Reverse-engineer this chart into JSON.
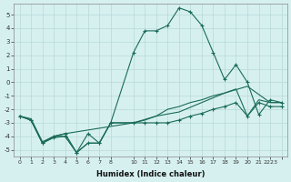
{
  "xlabel": "Humidex (Indice chaleur)",
  "ylabel": "",
  "background_color": "#d6f0f0",
  "grid_color": "#b8d8d8",
  "line_color": "#1a6b5a",
  "xlim": [
    -0.5,
    23.5
  ],
  "ylim": [
    -5.5,
    5.8
  ],
  "yticks": [
    -5,
    -4,
    -3,
    -2,
    -1,
    0,
    1,
    2,
    3,
    4,
    5
  ],
  "xtick_positions": [
    0,
    1,
    2,
    3,
    4,
    5,
    6,
    7,
    8,
    10,
    11,
    12,
    13,
    14,
    15,
    16,
    17,
    18,
    19,
    20,
    21,
    22,
    23
  ],
  "xtick_labels": [
    "0",
    "1",
    "2",
    "3",
    "4",
    "5",
    "6",
    "7",
    "8",
    "10",
    "11",
    "12",
    "13",
    "14",
    "15",
    "16",
    "17",
    "18",
    "19",
    "20",
    "21",
    "2223",
    ""
  ],
  "line1_x": [
    0,
    1,
    2,
    3,
    4,
    5,
    6,
    7,
    8,
    10,
    11,
    12,
    13,
    14,
    15,
    16,
    17,
    18,
    19,
    20,
    21,
    22,
    23
  ],
  "line1_y": [
    -2.5,
    -2.8,
    -4.5,
    -4.1,
    -4.0,
    -5.2,
    -4.5,
    -4.5,
    -3.0,
    -3.0,
    -3.0,
    -3.0,
    -3.0,
    -2.8,
    -2.5,
    -2.3,
    -2.0,
    -1.8,
    -1.5,
    -2.5,
    -1.5,
    -1.8,
    -1.8
  ],
  "line2_x": [
    0,
    1,
    2,
    3,
    4,
    5,
    6,
    7,
    8,
    10,
    11,
    12,
    13,
    14,
    15,
    16,
    17,
    18,
    19,
    20,
    21,
    22,
    23
  ],
  "line2_y": [
    -2.5,
    -2.8,
    -4.5,
    -4.0,
    -4.0,
    -5.2,
    -4.5,
    -4.5,
    -3.0,
    -3.0,
    -2.8,
    -2.5,
    -2.0,
    -1.8,
    -1.5,
    -1.3,
    -1.0,
    -0.8,
    -0.5,
    -2.5,
    -1.3,
    -1.5,
    -1.5
  ],
  "line3_x": [
    0,
    1,
    2,
    3,
    4,
    5,
    6,
    7,
    8,
    10,
    11,
    12,
    13,
    14,
    15,
    16,
    17,
    18,
    19,
    20,
    21,
    22,
    23
  ],
  "line3_y": [
    -2.5,
    -2.8,
    -4.5,
    -4.0,
    -3.8,
    -5.2,
    -3.8,
    -4.5,
    -3.0,
    2.2,
    3.8,
    3.8,
    4.2,
    5.5,
    5.2,
    4.2,
    2.2,
    0.2,
    1.3,
    0.0,
    -2.4,
    -1.3,
    -1.5
  ],
  "line4_x": [
    0,
    1,
    2,
    3,
    4,
    10,
    12,
    14,
    16,
    18,
    20,
    22,
    23
  ],
  "line4_y": [
    -2.5,
    -2.7,
    -4.4,
    -4.0,
    -3.8,
    -3.0,
    -2.5,
    -2.2,
    -1.5,
    -0.8,
    -0.3,
    -1.5,
    -1.5
  ]
}
